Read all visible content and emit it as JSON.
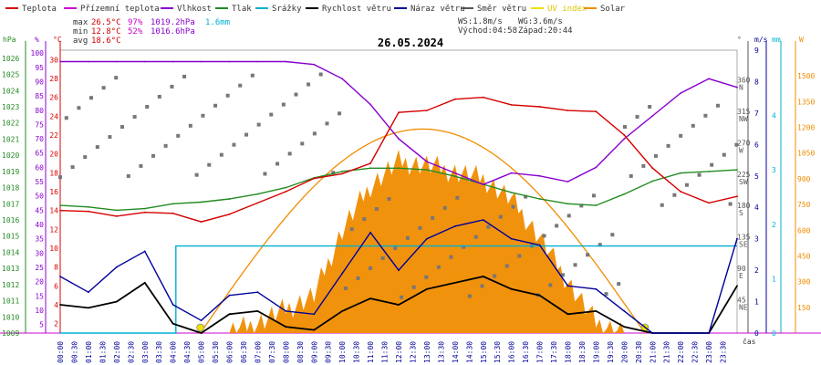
{
  "legend": [
    {
      "label": "Teplota",
      "color": "#d40000"
    },
    {
      "label": "Přízemní teplota",
      "color": "#cc00cc"
    },
    {
      "label": "Vlhkost",
      "color": "#8800cc"
    },
    {
      "label": "Tlak",
      "color": "#228b22"
    },
    {
      "label": "Srážky",
      "color": "#00b0d0"
    },
    {
      "label": "Rychlost větru",
      "color": "#000000"
    },
    {
      "label": "Náraz větru",
      "color": "#000099"
    },
    {
      "label": "Směr větru",
      "color": "#555555"
    },
    {
      "label": "UV index",
      "color": "#f0e000"
    },
    {
      "label": "Solar",
      "color": "#f08c00"
    }
  ],
  "stats": {
    "max_label": "max",
    "max_temp": "26.5°C",
    "max_hum": "97%",
    "max_press": "1019.2hPa",
    "rain": "1.6mm",
    "min_label": "min",
    "min_temp": "12.8°C",
    "min_hum": "52%",
    "min_press": "1016.6hPa",
    "avg_label": "avg",
    "avg_temp": "18.6°C"
  },
  "wind_info": {
    "ws": "WS:1.8m/s",
    "wg": "WG:3.6m/s",
    "sunrise": "Východ:04:58",
    "sunset": "Západ:20:44"
  },
  "date": "26.05.2024",
  "axis_units": {
    "hpa": "hPa",
    "pct": "%",
    "degc": "°C",
    "ms": "m/s",
    "mm": "mm",
    "w": "W",
    "time": "čas",
    "deg": "°"
  },
  "axes": {
    "pressure": [
      "1026",
      "1025",
      "1024",
      "1023",
      "1022",
      "1021",
      "1020",
      "1019",
      "1018",
      "1017",
      "1016",
      "1015",
      "1014",
      "1013",
      "1012",
      "1011",
      "1010",
      "1009"
    ],
    "humidity": [
      "100",
      "95",
      "90",
      "85",
      "80",
      "75",
      "70",
      "65",
      "60",
      "55",
      "50",
      "45",
      "40",
      "35",
      "30",
      "25",
      "20",
      "15",
      "10",
      "5"
    ],
    "temperature": [
      "30",
      "28",
      "26",
      "24",
      "22",
      "20",
      "18",
      "16",
      "14",
      "12",
      "10",
      "8",
      "6",
      "4",
      "2"
    ],
    "direction": [
      "360 N",
      "315 NW",
      "270 W",
      "225 SW",
      "180 S",
      "135 SE",
      "90 E",
      "45 NE"
    ],
    "wind_ms": [
      "9",
      "8",
      "7",
      "6",
      "5",
      "4",
      "3",
      "2",
      "1",
      "0"
    ],
    "rain_mm": [
      "4",
      "3",
      "2",
      "1",
      "0"
    ],
    "solar_w": [
      "1500",
      "1350",
      "1200",
      "1050",
      "900",
      "750",
      "600",
      "450",
      "300",
      "150"
    ]
  },
  "time_labels": [
    "00:00",
    "00:30",
    "01:00",
    "01:30",
    "02:00",
    "02:30",
    "03:00",
    "03:30",
    "04:00",
    "04:30",
    "05:00",
    "05:30",
    "06:00",
    "06:30",
    "07:00",
    "07:30",
    "08:00",
    "08:30",
    "09:00",
    "09:30",
    "10:00",
    "10:30",
    "11:00",
    "11:30",
    "12:00",
    "12:30",
    "13:00",
    "13:30",
    "14:00",
    "14:30",
    "15:00",
    "15:30",
    "16:00",
    "16:30",
    "17:00",
    "17:30",
    "18:00",
    "18:30",
    "19:00",
    "19:30",
    "20:00",
    "20:30",
    "21:00",
    "21:30",
    "22:00",
    "22:30",
    "23:00",
    "23:30"
  ],
  "chart_data": {
    "type": "line",
    "title": "26.05.2024",
    "x": [
      "00:00",
      "01:00",
      "02:00",
      "03:00",
      "04:00",
      "05:00",
      "06:00",
      "07:00",
      "08:00",
      "09:00",
      "10:00",
      "11:00",
      "12:00",
      "13:00",
      "14:00",
      "15:00",
      "16:00",
      "17:00",
      "18:00",
      "19:00",
      "20:00",
      "21:00",
      "22:00",
      "23:00",
      "23:50"
    ],
    "series": [
      {
        "name": "Teplota",
        "unit": "°C",
        "color": "#d40000",
        "values": [
          14.0,
          13.9,
          13.4,
          13.8,
          13.7,
          12.8,
          13.6,
          14.8,
          16.0,
          17.4,
          17.9,
          19.0,
          24.4,
          24.6,
          25.8,
          26.0,
          25.2,
          25.0,
          24.6,
          24.5,
          22.0,
          18.5,
          16.0,
          14.8,
          15.5
        ]
      },
      {
        "name": "Vlhkost",
        "unit": "%",
        "color": "#8800cc",
        "values": [
          97,
          97,
          97,
          97,
          97,
          97,
          97,
          97,
          97,
          96,
          91,
          82,
          70,
          62,
          58,
          54,
          58,
          57,
          55,
          60,
          70,
          78,
          86,
          91,
          88
        ]
      },
      {
        "name": "Tlak",
        "unit": "hPa",
        "color": "#228b22",
        "values": [
          1016.9,
          1016.8,
          1016.6,
          1016.7,
          1017.0,
          1017.1,
          1017.3,
          1017.6,
          1018.0,
          1018.6,
          1019.0,
          1019.2,
          1019.2,
          1019.1,
          1018.7,
          1018.2,
          1017.7,
          1017.3,
          1017.0,
          1016.9,
          1017.6,
          1018.4,
          1018.9,
          1019.0,
          1019.1
        ]
      },
      {
        "name": "Srážky",
        "unit": "mm",
        "color": "#00b0d0",
        "values": [
          0,
          0,
          0,
          1.6,
          1.6,
          1.6,
          1.6,
          1.6,
          1.6,
          1.6,
          1.6,
          1.6,
          1.6,
          1.6,
          1.6,
          1.6,
          1.6,
          1.6,
          1.6,
          1.6,
          1.6,
          1.6,
          1.6,
          1.6,
          1.6
        ]
      },
      {
        "name": "Rychlost větru",
        "unit": "m/s",
        "color": "#000000",
        "values": [
          0.9,
          0.8,
          1.0,
          1.6,
          0.3,
          0,
          0.6,
          0.7,
          0.2,
          0.1,
          0.7,
          1.1,
          0.9,
          1.4,
          1.6,
          1.8,
          1.4,
          1.2,
          0.6,
          0.7,
          0.2,
          0,
          0,
          0,
          1.5
        ]
      },
      {
        "name": "Náraz větru",
        "unit": "m/s",
        "color": "#000099",
        "values": [
          1.8,
          1.3,
          2.1,
          2.6,
          0.9,
          0.4,
          1.2,
          1.3,
          0.7,
          0.6,
          1.9,
          3.2,
          2.0,
          3.0,
          3.4,
          3.6,
          3.0,
          2.8,
          1.5,
          1.4,
          0.7,
          0,
          0,
          0,
          3.0
        ]
      },
      {
        "name": "Solar",
        "unit": "W",
        "color": "#f08c00",
        "values": [
          0,
          0,
          0,
          0,
          0,
          0,
          0,
          60,
          140,
          220,
          600,
          860,
          1000,
          980,
          940,
          900,
          780,
          560,
          300,
          60,
          0,
          0,
          0,
          0,
          0
        ]
      }
    ],
    "ylabel": "hPa / % / °C",
    "ylim_temperature": [
      1,
      31
    ],
    "ylim_humidity": [
      2,
      101
    ],
    "ylim_pressure": [
      1009,
      1026.5
    ],
    "ylim_wind": [
      0,
      9
    ],
    "ylim_solar": [
      0,
      1650
    ],
    "grid": false,
    "legend_position": "top"
  }
}
